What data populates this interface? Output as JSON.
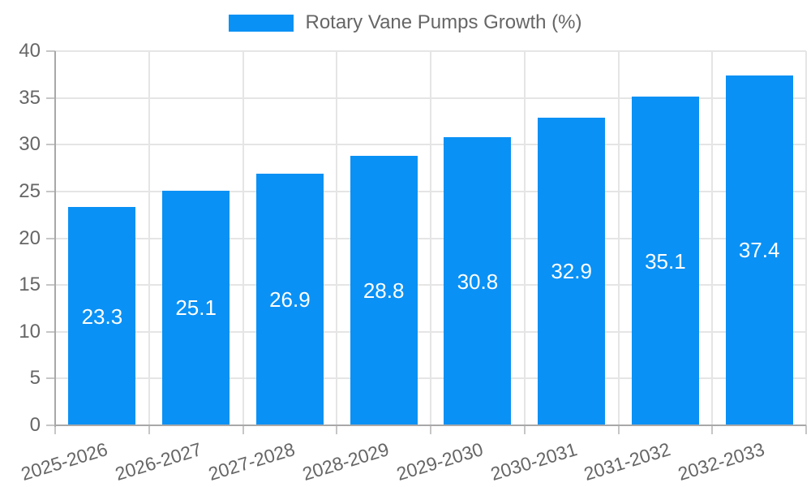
{
  "chart_data": {
    "type": "bar",
    "title": "",
    "legend": {
      "label": "Rotary Vane Pumps Growth (%)",
      "position": "top-center"
    },
    "categories": [
      "2025-2026",
      "2026-2027",
      "2027-2028",
      "2028-2029",
      "2029-2030",
      "2030-2031",
      "2031-2032",
      "2032-2033"
    ],
    "series": [
      {
        "name": "Rotary Vane Pumps Growth (%)",
        "values": [
          23.3,
          25.1,
          26.9,
          28.8,
          30.8,
          32.9,
          35.1,
          37.4
        ]
      }
    ],
    "bar_value_labels": [
      "23.3",
      "25.1",
      "26.9",
      "28.8",
      "30.8",
      "32.9",
      "35.1",
      "37.4"
    ],
    "ylim": [
      0,
      40
    ],
    "ytick_step": 5,
    "ytick_labels": [
      "0",
      "5",
      "10",
      "15",
      "20",
      "25",
      "30",
      "35",
      "40"
    ],
    "xlabel": "",
    "ylabel": "",
    "grid": true,
    "x_label_rotation_deg": -17,
    "colors": {
      "bar": "#0a91f5",
      "bar_label": "#ffffff",
      "axis_text": "#666666",
      "grid": "#e5e5e5",
      "axis_line": "#a8a8a8",
      "tick": "#c6c6c6",
      "background": "#ffffff"
    }
  }
}
